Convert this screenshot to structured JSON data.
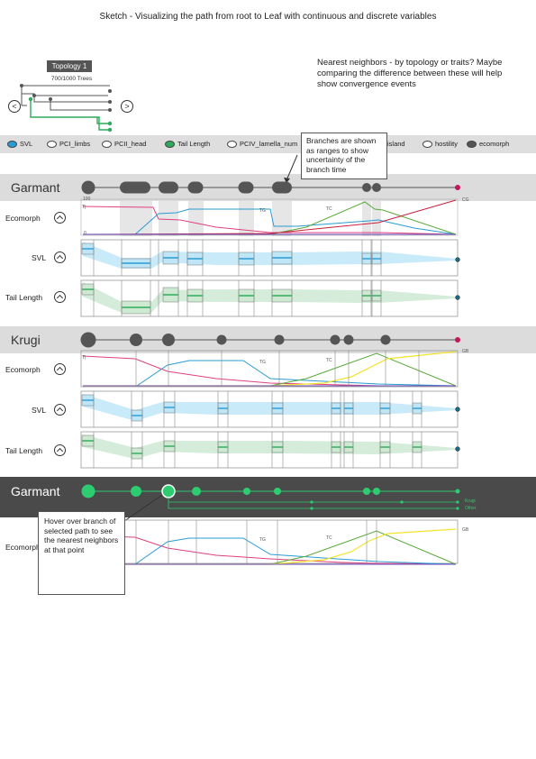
{
  "title": "Sketch - Visualizing the path from root to Leaf with continuous and discrete variables",
  "note": "Nearest neighbors - by topology or traits? Maybe comparing the difference between these will help show convergence events",
  "topology": {
    "badge": "Topology 1",
    "count": "700/1000 Trees",
    "prev_icon": "chevron-left-icon",
    "next_icon": "chevron-right-icon",
    "prev_glyph": "<",
    "next_glyph": ">"
  },
  "traits": [
    {
      "label": "SVL",
      "state": "on-blue"
    },
    {
      "label": "PCI_limbs",
      "state": "off"
    },
    {
      "label": "PCII_head",
      "state": "off"
    },
    {
      "label": "Tail Length",
      "state": "on-green"
    },
    {
      "label": "PCIV_lamella_num",
      "state": "off"
    },
    {
      "label": "island",
      "state": "off"
    },
    {
      "label": "hostility",
      "state": "off"
    },
    {
      "label": "ecomorph",
      "state": "dark"
    }
  ],
  "callout_branches": "Branches are shown as ranges to show uncertainty of the branch time",
  "callout_hover": "Hover over branch of selected path to see the nearest neighbors at that point",
  "sections": [
    {
      "name": "Garmant",
      "rows": {
        "ecomorph": "Ecomorph",
        "svl": "SVL",
        "tail": "Tail Length"
      },
      "eco_labels": {
        "max": "100",
        "min": "0",
        "tg": "TG",
        "tc": "TC",
        "end": "CG",
        "start": "T|"
      }
    },
    {
      "name": "Krugi",
      "rows": {
        "ecomorph": "Ecomorph",
        "svl": "SVL",
        "tail": "Tail Length"
      },
      "eco_labels": {
        "max": "",
        "min": "",
        "tg": "TG",
        "tc": "TC",
        "end": "GB",
        "start": "T|"
      }
    },
    {
      "name": "Garmant",
      "rows": {
        "ecomorph": "Ecomorph"
      },
      "eco_labels": {
        "tg": "TG",
        "tc": "TC",
        "end": "GB"
      },
      "neighbor_labels": [
        "Krugi",
        "Other"
      ]
    }
  ],
  "colors": {
    "svl": "#2a9bd3",
    "svl_band": "#bfe6f7",
    "tail": "#2eaa5b",
    "tail_band": "#cde9d2",
    "pink": "#e0407f",
    "yellow": "#f2e42b",
    "blue_line": "#2a9bd3",
    "green_line": "#5aaa3c",
    "node": "#555555",
    "selected": "#2ecc71"
  }
}
